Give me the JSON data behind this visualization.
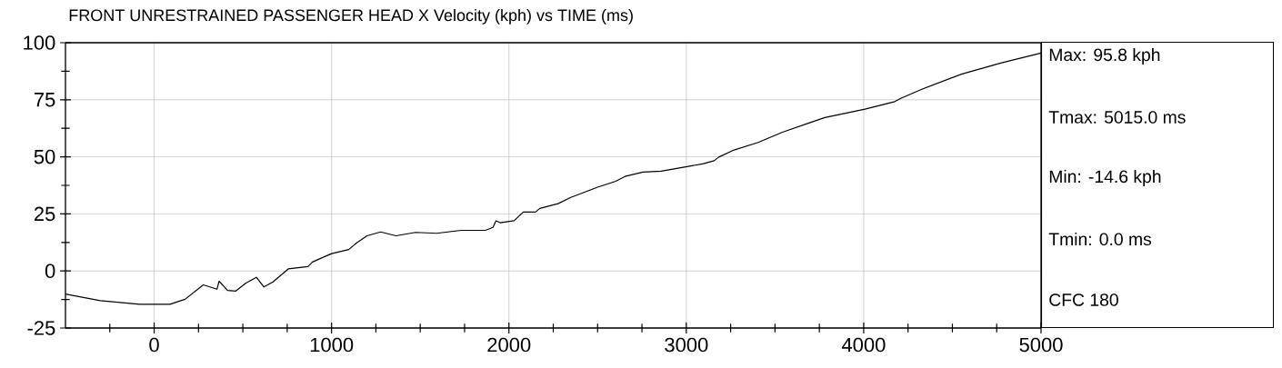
{
  "chart_data": {
    "type": "line",
    "title": "FRONT UNRESTRAINED PASSENGER HEAD X Velocity (kph) vs TIME (ms)",
    "annotations": [
      "Max: 95.8 kph",
      "Tmax: 5015.0 ms",
      "Min: -14.6 kph",
      "Tmin: 0.0 ms",
      "CFC 180"
    ],
    "x": [
      -500,
      -304,
      -82,
      89,
      174,
      277,
      354,
      366,
      414,
      460,
      516,
      576,
      619,
      670,
      756,
      867,
      892,
      1000,
      1097,
      1140,
      1200,
      1277,
      1363,
      1474,
      1593,
      1730,
      1867,
      1910,
      1927,
      1952,
      2029,
      2081,
      2150,
      2174,
      2277,
      2346,
      2500,
      2602,
      2654,
      2756,
      2858,
      3004,
      3097,
      3157,
      3183,
      3269,
      3405,
      3542,
      3695,
      3781,
      4007,
      4175,
      4209,
      4328,
      4551,
      4773,
      5000
    ],
    "series": [
      {
        "color": "#000000",
        "values": [
          -10.1,
          -13.0,
          -14.6,
          -14.6,
          -12.4,
          -6.1,
          -8.0,
          -4.5,
          -8.5,
          -8.8,
          -5.4,
          -2.8,
          -7.0,
          -4.8,
          0.9,
          1.9,
          3.9,
          7.6,
          9.4,
          12.2,
          15.4,
          17.1,
          15.4,
          16.9,
          16.5,
          17.8,
          17.8,
          19.1,
          22.0,
          21.1,
          22.0,
          25.8,
          25.8,
          27.4,
          29.5,
          32.1,
          36.7,
          39.3,
          41.4,
          43.3,
          43.7,
          45.7,
          47.0,
          48.3,
          49.9,
          53.0,
          56.3,
          60.8,
          64.9,
          67.2,
          70.9,
          74.2,
          75.6,
          79.6,
          86.2,
          91.1,
          95.5
        ]
      }
    ],
    "xlim": [
      -500,
      5000
    ],
    "ylim": [
      -25,
      100
    ],
    "xticks": [
      {
        "value": -250,
        "label": null
      },
      0,
      {
        "value": 250,
        "label": null
      },
      {
        "value": 500,
        "label": null
      },
      {
        "value": 750,
        "label": null
      },
      1000,
      {
        "value": 1250,
        "label": null
      },
      {
        "value": 1500,
        "label": null
      },
      {
        "value": 1750,
        "label": null
      },
      2000,
      {
        "value": 2250,
        "label": null
      },
      {
        "value": 2500,
        "label": null
      },
      {
        "value": 2750,
        "label": null
      },
      3000,
      {
        "value": 3250,
        "label": null
      },
      {
        "value": 3500,
        "label": null
      },
      {
        "value": 3750,
        "label": null
      },
      4000,
      {
        "value": 4250,
        "label": null
      },
      {
        "value": 4500,
        "label": null
      },
      {
        "value": 4750,
        "label": null
      },
      5000
    ],
    "yticks": [
      -25,
      {
        "value": -12.5,
        "label": null
      },
      0,
      {
        "value": 12.5,
        "label": null
      },
      25,
      {
        "value": 37.5,
        "label": null
      },
      50,
      {
        "value": 62.5,
        "label": null
      },
      75,
      {
        "value": 87.5,
        "label": null
      },
      100
    ],
    "grid": true
  }
}
